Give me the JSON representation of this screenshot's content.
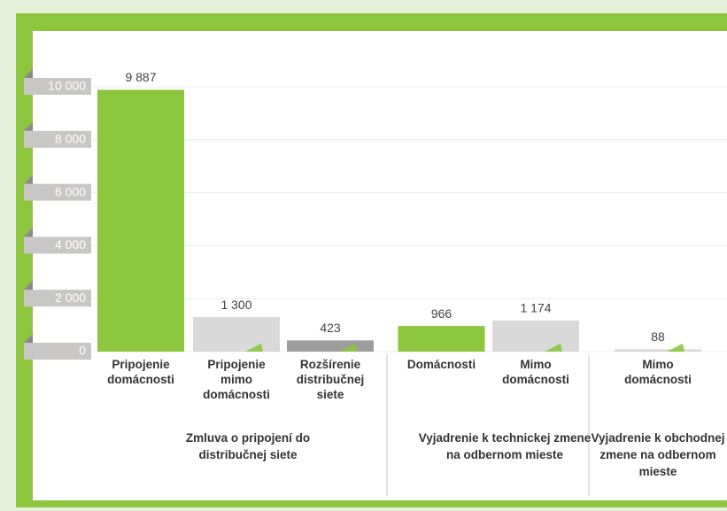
{
  "chart_data": {
    "type": "bar",
    "groups": [
      {
        "name": "Zmluva o pripojení do distribučnej siete",
        "categories": [
          "Pripojenie domácnosti",
          "Pripojenie mimo domácnosti",
          "Rozšírenie distribučnej siete"
        ],
        "values": [
          9887,
          1300,
          423
        ],
        "value_labels": [
          "9 887",
          "1 300",
          "423"
        ],
        "colors": [
          "#8cc63f",
          "#d9d9d9",
          "#9d9d9d"
        ]
      },
      {
        "name": "Vyjadrenie k technickej zmene na odbernom mieste",
        "categories": [
          "Domácnosti",
          "Mimo domácnosti"
        ],
        "values": [
          966,
          1174
        ],
        "value_labels": [
          "966",
          "1 174"
        ],
        "colors": [
          "#8cc63f",
          "#d9d9d9"
        ]
      },
      {
        "name": "Vyjadrenie k obchodnej zmene na odbernom mieste",
        "categories": [
          "Mimo domácnosti"
        ],
        "values": [
          88
        ],
        "value_labels": [
          "88"
        ],
        "colors": [
          "#d9d9d9"
        ]
      }
    ],
    "ylim": [
      0,
      10000
    ],
    "yticks": [
      0,
      {
        "value": 2000,
        "label": "2 000"
      },
      {
        "value": 4000,
        "label": "4 000"
      },
      {
        "value": 6000,
        "label": "6 000"
      },
      {
        "value": 8000,
        "label": "8 000"
      },
      {
        "value": 10000,
        "label": "10 000"
      }
    ],
    "grid": true
  }
}
